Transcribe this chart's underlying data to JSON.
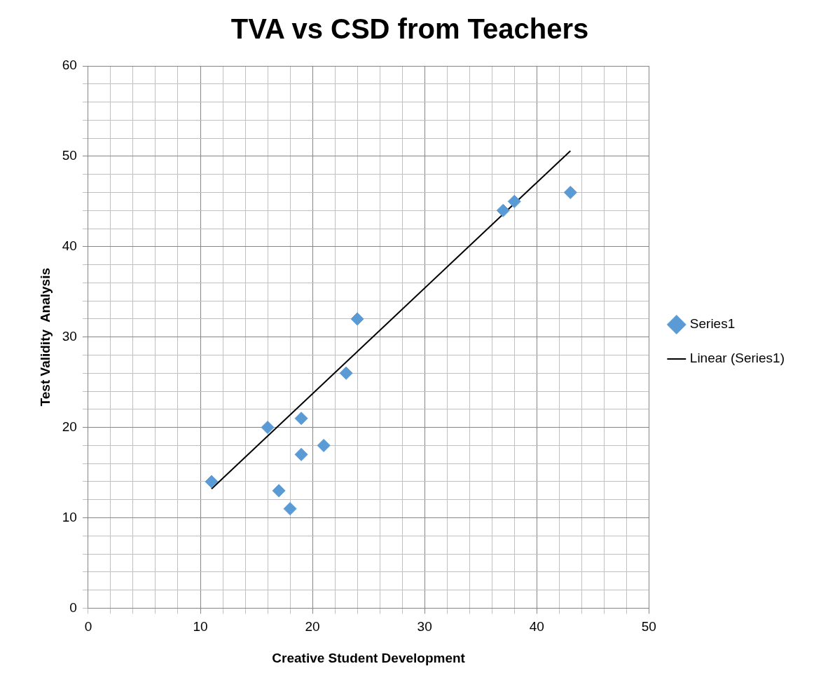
{
  "chart_data": {
    "type": "scatter",
    "title": "TVA vs CSD from Teachers",
    "xlabel": "Creative Student Development",
    "ylabel": "Test Validity  Analysis",
    "xlim": [
      0,
      50
    ],
    "ylim": [
      0,
      60
    ],
    "xticks": [
      0,
      {
        "value": 2,
        "label": null
      },
      {
        "value": 4,
        "label": null
      },
      {
        "value": 6,
        "label": null
      },
      {
        "value": 8,
        "label": null
      },
      10,
      {
        "value": 12,
        "label": null
      },
      {
        "value": 14,
        "label": null
      },
      {
        "value": 16,
        "label": null
      },
      {
        "value": 18,
        "label": null
      },
      20,
      {
        "value": 22,
        "label": null
      },
      {
        "value": 24,
        "label": null
      },
      {
        "value": 26,
        "label": null
      },
      {
        "value": 28,
        "label": null
      },
      30,
      {
        "value": 32,
        "label": null
      },
      {
        "value": 34,
        "label": null
      },
      {
        "value": 36,
        "label": null
      },
      {
        "value": 38,
        "label": null
      },
      40,
      {
        "value": 42,
        "label": null
      },
      {
        "value": 44,
        "label": null
      },
      {
        "value": 46,
        "label": null
      },
      {
        "value": 48,
        "label": null
      },
      50
    ],
    "yticks": [
      0,
      {
        "value": 2,
        "label": null
      },
      {
        "value": 4,
        "label": null
      },
      {
        "value": 6,
        "label": null
      },
      {
        "value": 8,
        "label": null
      },
      10,
      {
        "value": 12,
        "label": null
      },
      {
        "value": 14,
        "label": null
      },
      {
        "value": 16,
        "label": null
      },
      {
        "value": 18,
        "label": null
      },
      20,
      {
        "value": 22,
        "label": null
      },
      {
        "value": 24,
        "label": null
      },
      {
        "value": 26,
        "label": null
      },
      {
        "value": 28,
        "label": null
      },
      30,
      {
        "value": 32,
        "label": null
      },
      {
        "value": 34,
        "label": null
      },
      {
        "value": 36,
        "label": null
      },
      {
        "value": 38,
        "label": null
      },
      40,
      {
        "value": 42,
        "label": null
      },
      {
        "value": 44,
        "label": null
      },
      {
        "value": 46,
        "label": null
      },
      {
        "value": 48,
        "label": null
      },
      50,
      {
        "value": 52,
        "label": null
      },
      {
        "value": 54,
        "label": null
      },
      {
        "value": 56,
        "label": null
      },
      {
        "value": 58,
        "label": null
      },
      60
    ],
    "grid": true,
    "legend": "right",
    "marker": "diamond",
    "series": [
      {
        "name": "Series1",
        "color": "#5b9bd5",
        "x": [
          11,
          16,
          17,
          18,
          19,
          19,
          21,
          23,
          24,
          37,
          38,
          43
        ],
        "values": [
          14,
          20,
          13,
          11,
          17,
          21,
          18,
          26,
          32,
          44,
          45,
          46
        ]
      },
      {
        "name": "Linear (Series1)",
        "type": "line",
        "color": "#000000",
        "marker": "none",
        "x": [
          11,
          43
        ],
        "values": [
          13.2,
          50.6
        ]
      }
    ]
  }
}
